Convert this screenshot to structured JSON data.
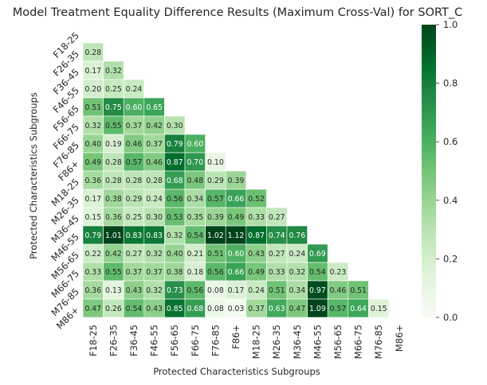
{
  "chart_data": {
    "type": "heatmap",
    "title": "Model Treatment Equality Difference Results (Maximum Cross-Val) for SORT_C",
    "xlabel": "Protected Characteristics Subgroups",
    "ylabel": "Protected Characteristics Subgroups",
    "labels": [
      "F18-25",
      "F26-35",
      "F36-45",
      "F46-55",
      "F56-65",
      "F66-75",
      "F76-85",
      "F86+",
      "M18-25",
      "M26-35",
      "M36-45",
      "M46-55",
      "M56-65",
      "M66-75",
      "M76-85",
      "M86+"
    ],
    "matrix": [
      [],
      [
        0.28
      ],
      [
        0.17,
        0.32
      ],
      [
        0.2,
        0.25,
        0.24
      ],
      [
        0.51,
        0.75,
        0.6,
        0.65
      ],
      [
        0.32,
        0.55,
        0.37,
        0.42,
        0.3
      ],
      [
        0.4,
        0.19,
        0.46,
        0.37,
        0.79,
        0.6
      ],
      [
        0.49,
        0.28,
        0.57,
        0.46,
        0.87,
        0.7,
        0.1
      ],
      [
        0.36,
        0.28,
        0.28,
        0.28,
        0.68,
        0.48,
        0.29,
        0.39
      ],
      [
        0.17,
        0.38,
        0.29,
        0.24,
        0.56,
        0.34,
        0.57,
        0.66,
        0.52
      ],
      [
        0.15,
        0.36,
        0.25,
        0.3,
        0.53,
        0.35,
        0.39,
        0.49,
        0.33,
        0.27
      ],
      [
        0.79,
        1.01,
        0.83,
        0.83,
        0.32,
        0.54,
        1.02,
        1.12,
        0.87,
        0.74,
        0.76
      ],
      [
        0.22,
        0.42,
        0.27,
        0.32,
        0.4,
        0.21,
        0.51,
        0.6,
        0.43,
        0.27,
        0.24,
        0.69
      ],
      [
        0.33,
        0.55,
        0.37,
        0.37,
        0.38,
        0.18,
        0.56,
        0.66,
        0.49,
        0.33,
        0.32,
        0.54,
        0.23
      ],
      [
        0.36,
        0.13,
        0.43,
        0.32,
        0.73,
        0.56,
        0.08,
        0.17,
        0.24,
        0.51,
        0.34,
        0.97,
        0.46,
        0.51
      ],
      [
        0.47,
        0.26,
        0.54,
        0.43,
        0.85,
        0.68,
        0.08,
        0.03,
        0.37,
        0.63,
        0.47,
        1.09,
        0.57,
        0.64,
        0.15
      ]
    ],
    "vmin": 0,
    "vmax": 1,
    "colormap": "Greens",
    "mask": "upper-triangle-and-diagonal",
    "colorbar_ticks": [
      "0.0",
      "0.2",
      "0.4",
      "0.6",
      "0.8",
      "1.0"
    ],
    "colorbar_values": [
      0,
      0.2,
      0.4,
      0.6,
      0.8,
      1.0
    ]
  }
}
